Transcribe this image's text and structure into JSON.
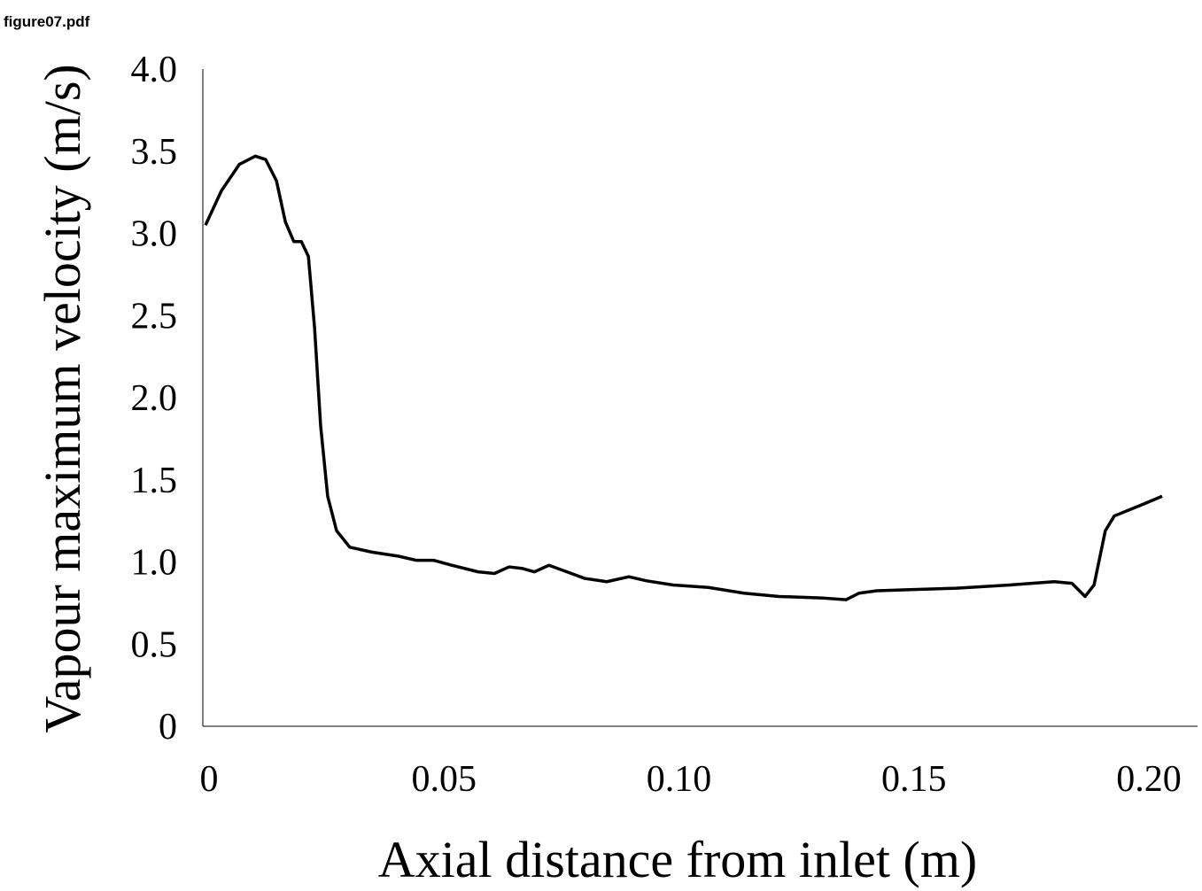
{
  "header": "figure07.pdf",
  "chart_data": {
    "type": "line",
    "xlabel": "Axial distance from inlet (m)",
    "ylabel": "Vapour maximum velocity (m/s)",
    "xlim": [
      0,
      0.21
    ],
    "ylim": [
      0,
      4
    ],
    "xticks": [
      0,
      0.05,
      {
        "value": 0.1,
        "label": "0.10"
      },
      0.15,
      {
        "value": 0.2,
        "label": "0.20"
      }
    ],
    "yticks": [
      0,
      0.5,
      {
        "value": 1,
        "label": "1.0"
      },
      1.5,
      {
        "value": 2,
        "label": "2.0"
      },
      2.5,
      {
        "value": 3,
        "label": "3.0"
      },
      3.5,
      {
        "value": 4,
        "label": "4.0"
      }
    ],
    "grid": false,
    "series": [
      {
        "color": "#000000",
        "x": [
          0,
          0.0034,
          0.0072,
          0.0106,
          0.0128,
          0.0151,
          0.017,
          0.0188,
          0.0204,
          0.0219,
          0.0232,
          0.0245,
          0.026,
          0.0279,
          0.0307,
          0.0354,
          0.0411,
          0.0449,
          0.0486,
          0.0524,
          0.058,
          0.0615,
          0.0646,
          0.0675,
          0.07,
          0.0731,
          0.0769,
          0.0807,
          0.0854,
          0.0901,
          0.0939,
          0.0995,
          0.107,
          0.1146,
          0.1221,
          0.1316,
          0.1363,
          0.1391,
          0.1429,
          0.1485,
          0.1598,
          0.1712,
          0.1806,
          0.1844,
          0.1872,
          0.1891,
          0.1915,
          0.1934,
          0.1994,
          0.2036
        ],
        "values": [
          3.05,
          3.26,
          3.42,
          3.47,
          3.45,
          3.32,
          3.07,
          2.95,
          2.95,
          2.86,
          2.43,
          1.83,
          1.4,
          1.19,
          1.09,
          1.06,
          1.035,
          1.01,
          1.01,
          0.98,
          0.94,
          0.93,
          0.97,
          0.96,
          0.94,
          0.98,
          0.94,
          0.9,
          0.88,
          0.91,
          0.885,
          0.86,
          0.845,
          0.81,
          0.79,
          0.78,
          0.77,
          0.81,
          0.825,
          0.83,
          0.84,
          0.86,
          0.88,
          0.87,
          0.79,
          0.86,
          1.19,
          1.28,
          1.35,
          1.4
        ]
      }
    ]
  }
}
